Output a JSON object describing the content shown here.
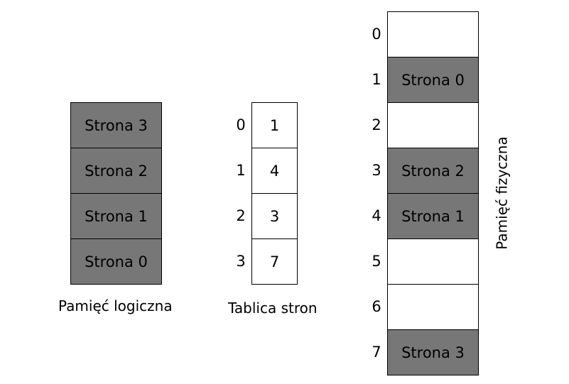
{
  "colors": {
    "filled": "#777777",
    "empty": "#ffffff",
    "border": "#000000"
  },
  "logical_memory": {
    "caption": "Pamięć logiczna",
    "pages": [
      "Strona 3",
      "Strona 2",
      "Strona 1",
      "Strona 0"
    ]
  },
  "page_table": {
    "caption": "Tablica stron",
    "rows": [
      {
        "index": "0",
        "frame": "1"
      },
      {
        "index": "1",
        "frame": "4"
      },
      {
        "index": "2",
        "frame": "3"
      },
      {
        "index": "3",
        "frame": "7"
      }
    ]
  },
  "physical_memory": {
    "caption": "Pamięć fizyczna",
    "frames": [
      {
        "index": "0",
        "label": ""
      },
      {
        "index": "1",
        "label": "Strona 0"
      },
      {
        "index": "2",
        "label": ""
      },
      {
        "index": "3",
        "label": "Strona 2"
      },
      {
        "index": "4",
        "label": "Strona 1"
      },
      {
        "index": "5",
        "label": ""
      },
      {
        "index": "6",
        "label": ""
      },
      {
        "index": "7",
        "label": "Strona 3"
      }
    ]
  }
}
